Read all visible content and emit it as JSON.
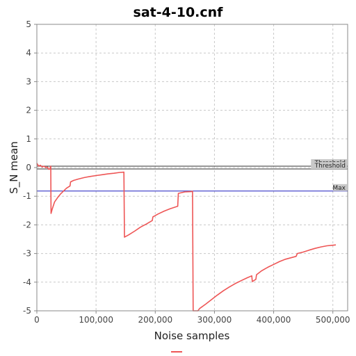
{
  "chart_data": {
    "type": "line",
    "title": "sat-4-10.cnf",
    "xlabel": "Noise samples",
    "ylabel": "S_N mean",
    "xlim": [
      0,
      525000
    ],
    "ylim": [
      -5,
      5
    ],
    "x_ticks": [
      0,
      100000,
      200000,
      300000,
      400000,
      500000
    ],
    "x_tick_labels": [
      "0",
      "100,000",
      "200,000",
      "300,000",
      "400,000",
      "500,000"
    ],
    "y_ticks": [
      -5,
      -4,
      -3,
      -2,
      -1,
      0,
      1,
      2,
      3,
      4,
      5
    ],
    "y_tick_labels": [
      "-5",
      "-4",
      "-3",
      "-2",
      "-1",
      "0",
      "1",
      "2",
      "3",
      "4",
      "5"
    ],
    "grid": true,
    "reference_lines": [
      {
        "label": "Threshold",
        "y": 0.05,
        "color": "#333333"
      },
      {
        "label": "Threshold",
        "y": -0.05,
        "color": "#333333"
      },
      {
        "label": "Max",
        "y": -0.82,
        "color": "#1f1fbf"
      }
    ],
    "series": [
      {
        "name": "",
        "color": "#ee5555",
        "points": [
          [
            0,
            0.15
          ],
          [
            3000,
            0.05
          ],
          [
            6000,
            0.08
          ],
          [
            9000,
            0.02
          ],
          [
            12000,
            0.05
          ],
          [
            15000,
            0.0
          ],
          [
            18000,
            0.02
          ],
          [
            20000,
            -0.06
          ],
          [
            22000,
            -0.05
          ],
          [
            23500,
            0.05
          ],
          [
            24000,
            -1.6
          ],
          [
            26000,
            -1.45
          ],
          [
            30000,
            -1.2
          ],
          [
            35000,
            -1.05
          ],
          [
            40000,
            -0.92
          ],
          [
            45000,
            -0.82
          ],
          [
            50000,
            -0.72
          ],
          [
            56000,
            -0.64
          ],
          [
            57000,
            -0.5
          ],
          [
            62000,
            -0.45
          ],
          [
            70000,
            -0.4
          ],
          [
            80000,
            -0.35
          ],
          [
            90000,
            -0.31
          ],
          [
            100000,
            -0.28
          ],
          [
            110000,
            -0.25
          ],
          [
            120000,
            -0.22
          ],
          [
            130000,
            -0.2
          ],
          [
            140000,
            -0.17
          ],
          [
            147000,
            -0.16
          ],
          [
            148000,
            -2.43
          ],
          [
            155000,
            -2.35
          ],
          [
            165000,
            -2.22
          ],
          [
            175000,
            -2.08
          ],
          [
            185000,
            -1.97
          ],
          [
            195000,
            -1.85
          ],
          [
            196000,
            -1.72
          ],
          [
            205000,
            -1.62
          ],
          [
            215000,
            -1.52
          ],
          [
            225000,
            -1.44
          ],
          [
            238000,
            -1.35
          ],
          [
            239000,
            -0.9
          ],
          [
            250000,
            -0.85
          ],
          [
            260000,
            -0.84
          ],
          [
            263000,
            -0.83
          ],
          [
            264000,
            -5.0
          ],
          [
            268000,
            -5.0
          ],
          [
            272000,
            -5.0
          ],
          [
            275000,
            -4.92
          ],
          [
            285000,
            -4.77
          ],
          [
            295000,
            -4.61
          ],
          [
            305000,
            -4.45
          ],
          [
            315000,
            -4.3
          ],
          [
            325000,
            -4.17
          ],
          [
            335000,
            -4.05
          ],
          [
            345000,
            -3.95
          ],
          [
            355000,
            -3.85
          ],
          [
            363000,
            -3.78
          ],
          [
            364000,
            -3.98
          ],
          [
            370000,
            -3.9
          ],
          [
            371000,
            -3.74
          ],
          [
            380000,
            -3.6
          ],
          [
            390000,
            -3.48
          ],
          [
            400000,
            -3.38
          ],
          [
            410000,
            -3.28
          ],
          [
            420000,
            -3.2
          ],
          [
            438000,
            -3.1
          ],
          [
            440000,
            -3.0
          ],
          [
            450000,
            -2.95
          ],
          [
            460000,
            -2.88
          ],
          [
            470000,
            -2.82
          ],
          [
            480000,
            -2.77
          ],
          [
            490000,
            -2.73
          ],
          [
            500000,
            -2.71
          ],
          [
            505000,
            -2.7
          ]
        ]
      }
    ]
  }
}
